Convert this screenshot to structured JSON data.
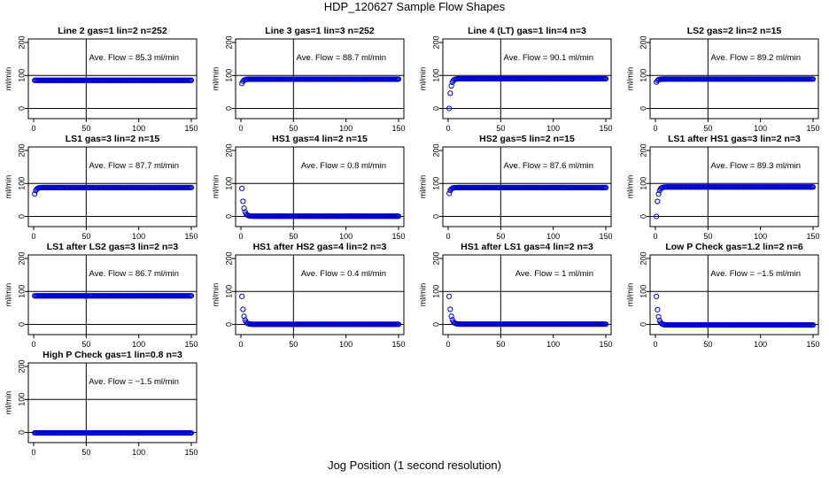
{
  "title": "HDP_120627  Sample Flow Shapes",
  "xlabel": "Jog Position (1 second resolution)",
  "ylabel": "ml/min",
  "point_color": "#0000cc",
  "chart_data": [
    {
      "type": "scatter",
      "title": "Line 2 gas=1 lin=2 n=252",
      "annotation": "Ave. Flow = 85.3  ml/min",
      "shape": "flat",
      "level": 85.3,
      "start": 85,
      "xlim": [
        0,
        150
      ],
      "ylim": [
        -20,
        200
      ],
      "xticks": [
        0,
        50,
        100,
        150
      ],
      "yticks": [
        0,
        100,
        200
      ],
      "hlines": [
        100,
        0
      ],
      "vline": 50
    },
    {
      "type": "scatter",
      "title": "Line 3 gas=1 lin=3 n=252",
      "annotation": "Ave. Flow = 88.7  ml/min",
      "shape": "rise",
      "level": 88.7,
      "start": 76,
      "xlim": [
        0,
        150
      ],
      "ylim": [
        -20,
        200
      ],
      "xticks": [
        0,
        50,
        100,
        150
      ],
      "yticks": [
        0,
        100,
        200
      ],
      "hlines": [
        100,
        0
      ],
      "vline": 50
    },
    {
      "type": "scatter",
      "title": "Line 4 (LT) gas=1 lin=4 n=3",
      "annotation": "Ave. Flow = 90.1  ml/min",
      "shape": "rise",
      "level": 90.1,
      "start": 0,
      "xlim": [
        0,
        150
      ],
      "ylim": [
        -20,
        200
      ],
      "xticks": [
        0,
        50,
        100,
        150
      ],
      "yticks": [
        0,
        100,
        200
      ],
      "hlines": [
        100,
        0
      ],
      "vline": 50
    },
    {
      "type": "scatter",
      "title": "LS2 gas=2 lin=2 n=15",
      "annotation": "Ave. Flow = 89.2  ml/min",
      "shape": "rise",
      "level": 89.2,
      "start": 80,
      "xlim": [
        0,
        150
      ],
      "ylim": [
        -20,
        200
      ],
      "xticks": [
        0,
        50,
        100,
        150
      ],
      "yticks": [
        0,
        100,
        200
      ],
      "hlines": [
        100,
        0
      ],
      "vline": 50
    },
    {
      "type": "scatter",
      "title": "LS1 gas=3 lin=2 n=15",
      "annotation": "Ave. Flow = 87.7  ml/min",
      "shape": "rise",
      "level": 87.7,
      "start": 68,
      "xlim": [
        0,
        150
      ],
      "ylim": [
        -20,
        200
      ],
      "xticks": [
        0,
        50,
        100,
        150
      ],
      "yticks": [
        0,
        100,
        200
      ],
      "hlines": [
        100,
        0
      ],
      "vline": 50
    },
    {
      "type": "scatter",
      "title": "HS1 gas=4 lin=2 n=15",
      "annotation": "Ave. Flow = 0.8  ml/min",
      "shape": "decay",
      "level": 0.8,
      "start": 85,
      "xlim": [
        0,
        150
      ],
      "ylim": [
        -20,
        200
      ],
      "xticks": [
        0,
        50,
        100,
        150
      ],
      "yticks": [
        0,
        100,
        200
      ],
      "hlines": [
        100,
        0
      ],
      "vline": 50
    },
    {
      "type": "scatter",
      "title": "HS2 gas=5 lin=2 n=15",
      "annotation": "Ave. Flow = 87.6  ml/min",
      "shape": "rise",
      "level": 87.6,
      "start": 70,
      "xlim": [
        0,
        150
      ],
      "ylim": [
        -20,
        200
      ],
      "xticks": [
        0,
        50,
        100,
        150
      ],
      "yticks": [
        0,
        100,
        200
      ],
      "hlines": [
        100,
        0
      ],
      "vline": 50
    },
    {
      "type": "scatter",
      "title": "LS1 after HS1 gas=3 lin=2 n=3",
      "annotation": "Ave. Flow = 89.3  ml/min",
      "shape": "rise",
      "level": 89.3,
      "start": 0,
      "xlim": [
        0,
        150
      ],
      "ylim": [
        -20,
        200
      ],
      "xticks": [
        0,
        50,
        100,
        150
      ],
      "yticks": [
        0,
        100,
        200
      ],
      "hlines": [
        100,
        0
      ],
      "vline": 50
    },
    {
      "type": "scatter",
      "title": "LS1 after LS2 gas=3 lin=2 n=3",
      "annotation": "Ave. Flow = 86.7  ml/min",
      "shape": "flat",
      "level": 86.7,
      "start": 86,
      "xlim": [
        0,
        150
      ],
      "ylim": [
        -20,
        200
      ],
      "xticks": [
        0,
        50,
        100,
        150
      ],
      "yticks": [
        0,
        100,
        200
      ],
      "hlines": [
        100,
        0
      ],
      "vline": 50
    },
    {
      "type": "scatter",
      "title": "HS1 after HS2 gas=4 lin=2 n=3",
      "annotation": "Ave. Flow = 0.4  ml/min",
      "shape": "decay",
      "level": 0.4,
      "start": 85,
      "xlim": [
        0,
        150
      ],
      "ylim": [
        -20,
        200
      ],
      "xticks": [
        0,
        50,
        100,
        150
      ],
      "yticks": [
        0,
        100,
        200
      ],
      "hlines": [
        100,
        0
      ],
      "vline": 50
    },
    {
      "type": "scatter",
      "title": "HS1 after LS1 gas=4 lin=2 n=3",
      "annotation": "Ave. Flow = 1  ml/min",
      "shape": "decay",
      "level": 1,
      "start": 85,
      "xlim": [
        0,
        150
      ],
      "ylim": [
        -20,
        200
      ],
      "xticks": [
        0,
        50,
        100,
        150
      ],
      "yticks": [
        0,
        100,
        200
      ],
      "hlines": [
        100,
        0
      ],
      "vline": 50
    },
    {
      "type": "scatter",
      "title": "Low P Check gas=1.2 lin=2 n=6",
      "annotation": "Ave. Flow = −1.5  ml/min",
      "shape": "decay",
      "level": -1.5,
      "start": 85,
      "xlim": [
        0,
        150
      ],
      "ylim": [
        -20,
        200
      ],
      "xticks": [
        0,
        50,
        100,
        150
      ],
      "yticks": [
        0,
        100,
        200
      ],
      "hlines": [
        100,
        0
      ],
      "vline": 50
    },
    {
      "type": "scatter",
      "title": "High P Check gas=1 lin=0.8 n=3",
      "annotation": "Ave. Flow = −1.5  ml/min",
      "shape": "flat",
      "level": -1.5,
      "start": -1.5,
      "xlim": [
        0,
        150
      ],
      "ylim": [
        -20,
        200
      ],
      "xticks": [
        0,
        50,
        100,
        150
      ],
      "yticks": [
        0,
        100,
        200
      ],
      "hlines": [
        100,
        0
      ],
      "vline": 50
    }
  ]
}
